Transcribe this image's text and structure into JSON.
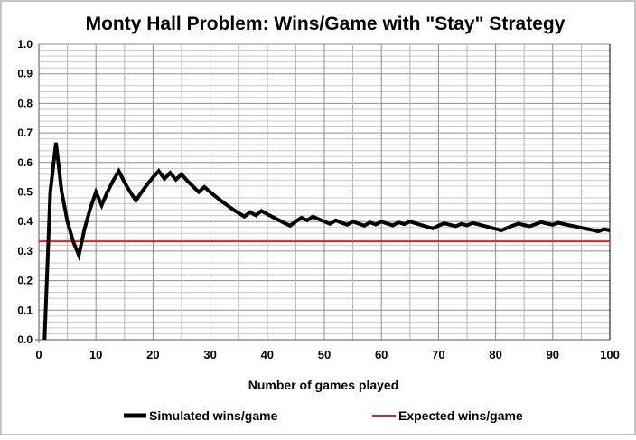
{
  "chart_data": {
    "type": "line",
    "title": "Monty Hall Problem: Wins/Game with \"Stay\" Strategy",
    "xlabel": "Number of games played",
    "ylabel": "",
    "xlim": [
      0,
      100
    ],
    "ylim": [
      0,
      1.0
    ],
    "x_ticks": [
      "0",
      "10",
      "20",
      "30",
      "40",
      "50",
      "60",
      "70",
      "80",
      "90",
      "100"
    ],
    "y_ticks": [
      "0.0",
      "0.1",
      "0.2",
      "0.3",
      "0.4",
      "0.5",
      "0.6",
      "0.7",
      "0.8",
      "0.9",
      "1.0"
    ],
    "grid": true,
    "legend_position": "bottom",
    "series": [
      {
        "name": "Simulated wins/game",
        "color": "#000000",
        "x": [
          1,
          2,
          3,
          4,
          5,
          6,
          7,
          8,
          9,
          10,
          11,
          12,
          13,
          14,
          15,
          16,
          17,
          18,
          19,
          20,
          21,
          22,
          23,
          24,
          25,
          26,
          27,
          28,
          29,
          30,
          31,
          32,
          33,
          34,
          35,
          36,
          37,
          38,
          39,
          40,
          41,
          42,
          43,
          44,
          45,
          46,
          47,
          48,
          49,
          50,
          51,
          52,
          53,
          54,
          55,
          56,
          57,
          58,
          59,
          60,
          61,
          62,
          63,
          64,
          65,
          66,
          67,
          68,
          69,
          70,
          71,
          72,
          73,
          74,
          75,
          76,
          77,
          78,
          79,
          80,
          81,
          82,
          83,
          84,
          85,
          86,
          87,
          88,
          89,
          90,
          91,
          92,
          93,
          94,
          95,
          96,
          97,
          98,
          99,
          100
        ],
        "y": [
          0,
          0.5,
          0.667,
          0.5,
          0.4,
          0.333,
          0.286,
          0.375,
          0.444,
          0.5,
          0.455,
          0.5,
          0.538,
          0.571,
          0.533,
          0.5,
          0.471,
          0.5,
          0.526,
          0.55,
          0.571,
          0.545,
          0.565,
          0.542,
          0.56,
          0.538,
          0.519,
          0.5,
          0.517,
          0.5,
          0.484,
          0.469,
          0.455,
          0.441,
          0.429,
          0.417,
          0.432,
          0.421,
          0.436,
          0.425,
          0.415,
          0.405,
          0.395,
          0.386,
          0.4,
          0.413,
          0.404,
          0.417,
          0.408,
          0.4,
          0.392,
          0.404,
          0.396,
          0.389,
          0.4,
          0.393,
          0.386,
          0.397,
          0.39,
          0.4,
          0.393,
          0.387,
          0.397,
          0.391,
          0.4,
          0.394,
          0.388,
          0.382,
          0.377,
          0.386,
          0.394,
          0.389,
          0.384,
          0.392,
          0.387,
          0.395,
          0.39,
          0.385,
          0.38,
          0.375,
          0.37,
          0.378,
          0.386,
          0.393,
          0.388,
          0.384,
          0.391,
          0.398,
          0.393,
          0.389,
          0.396,
          0.391,
          0.387,
          0.383,
          0.379,
          0.375,
          0.371,
          0.367,
          0.374,
          0.37
        ]
      },
      {
        "name": "Expected wins/game",
        "color": "#e02020",
        "x": [
          0,
          100
        ],
        "y": [
          0.333,
          0.333
        ]
      }
    ]
  }
}
